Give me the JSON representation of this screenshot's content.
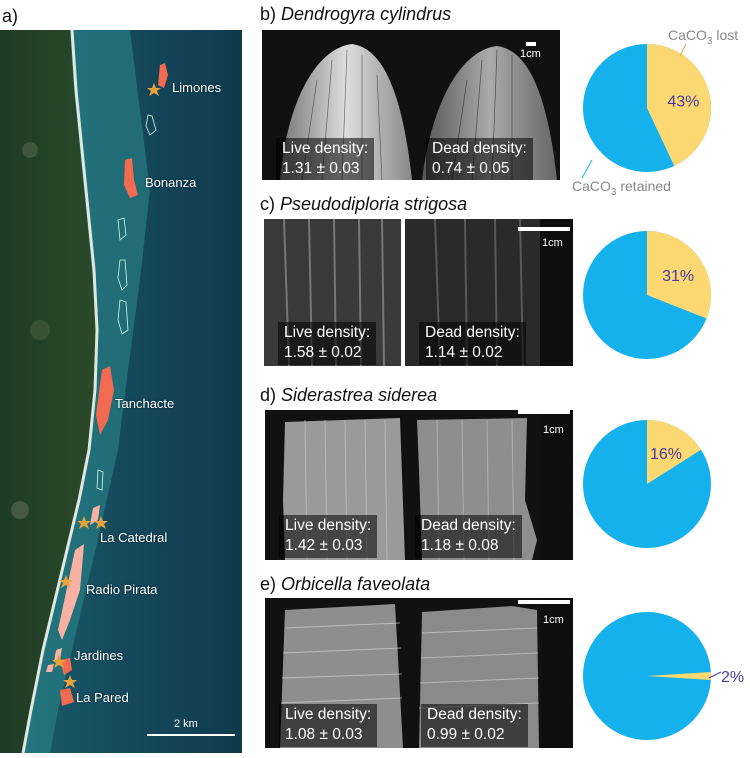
{
  "panel_a": {
    "label": "a)",
    "sites": [
      {
        "name": "Limones"
      },
      {
        "name": "Bonanza"
      },
      {
        "name": "Tanchacte"
      },
      {
        "name": "La Catedral"
      },
      {
        "name": "Radio Pirata"
      },
      {
        "name": "Jardines"
      },
      {
        "name": "La Pared"
      }
    ],
    "scale_label": "2 km"
  },
  "corals": [
    {
      "letter": "b)",
      "species": "Dendrogyra cylindrus",
      "live": "Live density:",
      "live_val": "1.31 ± 0.03",
      "dead": "Dead density:",
      "dead_val": "0.74 ± 0.05",
      "scale": "1cm",
      "lost_pct": 43,
      "lost_label": "43%"
    },
    {
      "letter": "c)",
      "species": "Pseudodiploria strigosa",
      "live": "Live density:",
      "live_val": "1.58 ± 0.02",
      "dead": "Dead density:",
      "dead_val": "1.14 ± 0.02",
      "scale": "1cm",
      "lost_pct": 31,
      "lost_label": "31%"
    },
    {
      "letter": "d)",
      "species": "Siderastrea siderea",
      "live": "Live density:",
      "live_val": "1.42 ± 0.03",
      "dead": "Dead density:",
      "dead_val": "1.18 ± 0.08",
      "scale": "1cm",
      "lost_pct": 16,
      "lost_label": "16%"
    },
    {
      "letter": "e)",
      "species": "Orbicella faveolata",
      "live": "Live density:",
      "live_val": "1.08 ± 0.03",
      "dead": "Dead density:",
      "dead_val": "0.99 ± 0.02",
      "scale": "1cm",
      "lost_pct": 2,
      "lost_label": "2%"
    }
  ],
  "pie_legend": {
    "lost": "CaCO3 lost",
    "retained": "CaCO3 retained"
  },
  "colors": {
    "retained": "#14b1ec",
    "lost": "#fcd873",
    "reef": "#f26a4f",
    "reef_light": "#f7b2a4",
    "star": "#e6a33d"
  }
}
